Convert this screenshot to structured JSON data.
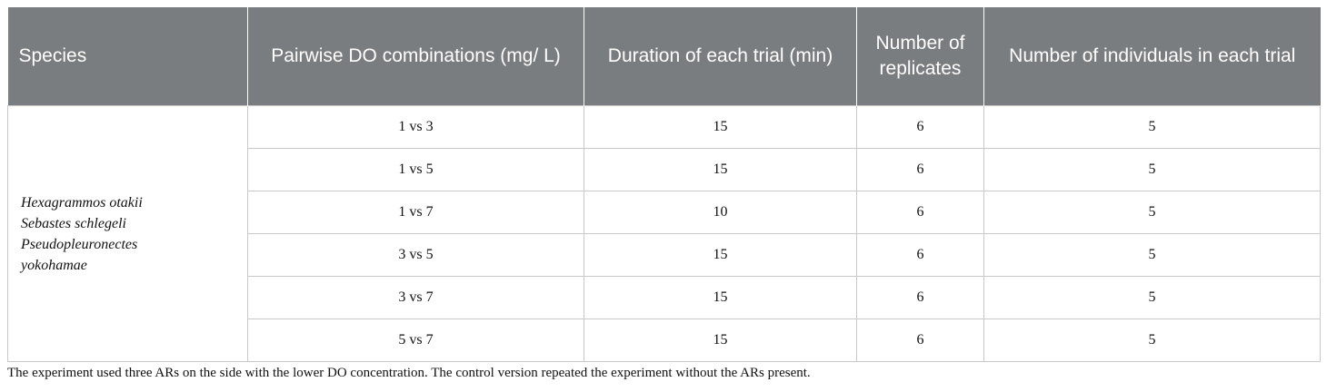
{
  "table": {
    "headers": [
      "Species",
      "Pairwise DO combinations (mg/ L)",
      "Duration of each trial (min)",
      "Number of replicates",
      "Number of individuals in each trial"
    ],
    "species": [
      "Hexagrammos otakii",
      "Sebastes schlegeli",
      "Pseudopleuronectes",
      "yokohamae"
    ],
    "rows": [
      {
        "combination": "1 vs 3",
        "duration": "15",
        "replicates": "6",
        "individuals": "5"
      },
      {
        "combination": "1 vs 5",
        "duration": "15",
        "replicates": "6",
        "individuals": "5"
      },
      {
        "combination": "1 vs 7",
        "duration": "10",
        "replicates": "6",
        "individuals": "5"
      },
      {
        "combination": "3 vs 5",
        "duration": "15",
        "replicates": "6",
        "individuals": "5"
      },
      {
        "combination": "3 vs 7",
        "duration": "15",
        "replicates": "6",
        "individuals": "5"
      },
      {
        "combination": "5 vs 7",
        "duration": "15",
        "replicates": "6",
        "individuals": "5"
      }
    ]
  },
  "footnote": "The experiment used three ARs on the side with the lower DO concentration. The control version repeated the experiment without the ARs present."
}
